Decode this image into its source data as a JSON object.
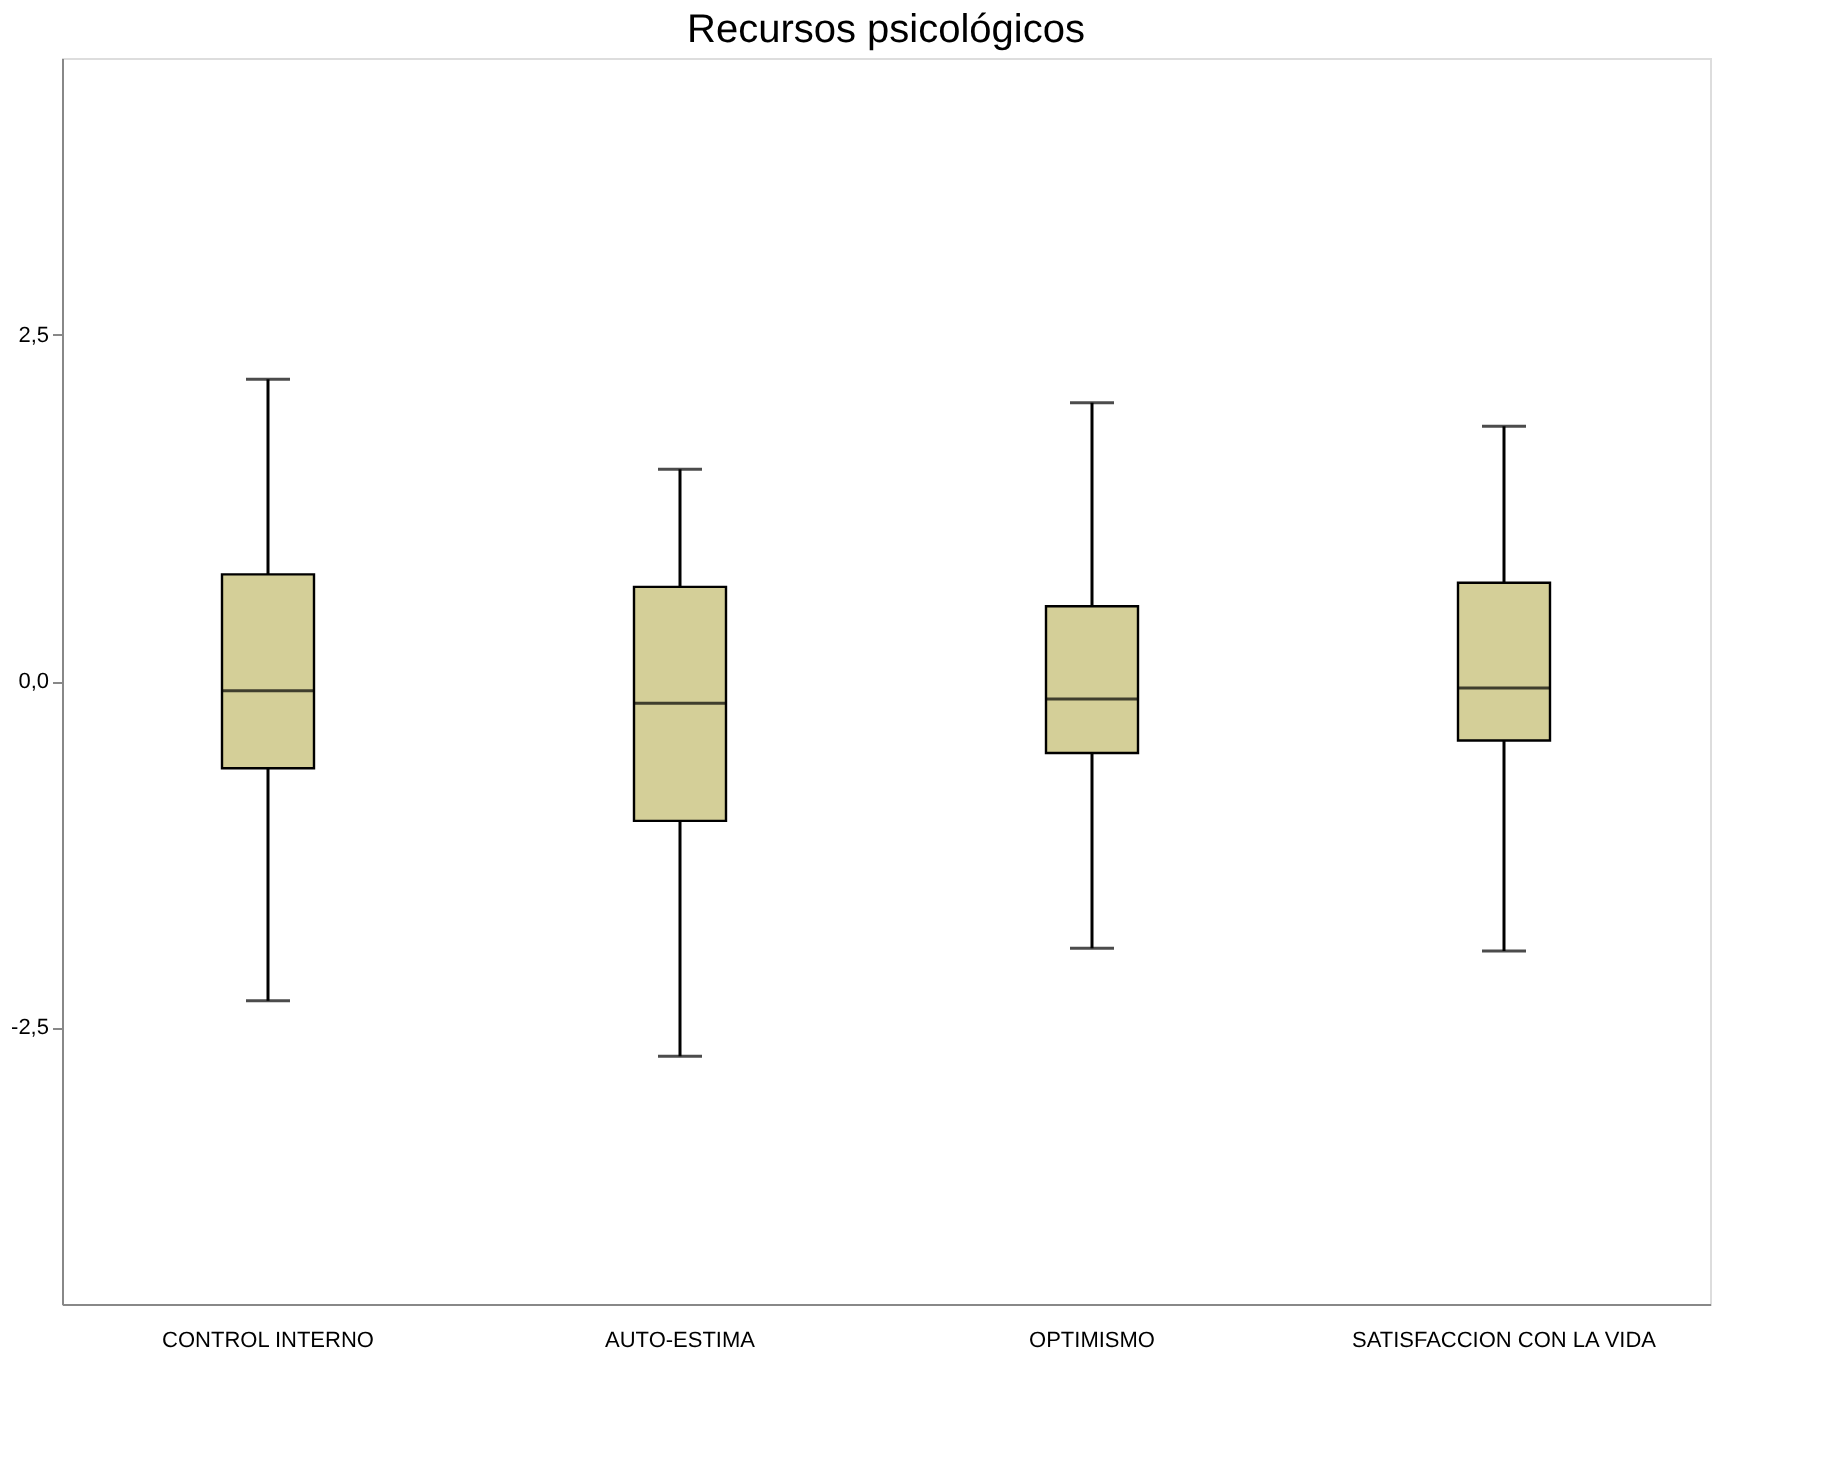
{
  "chart_data": {
    "type": "box",
    "title": "Recursos psicológicos",
    "categories": [
      "CONTROL INTERNO",
      "AUTO-ESTIMA",
      "OPTIMISMO",
      "SATISFACCION CON LA VIDA"
    ],
    "boxes": [
      {
        "low": -2.31,
        "q1": -0.63,
        "median": -0.07,
        "q3": 0.77,
        "high": 2.18
      },
      {
        "low": -2.71,
        "q1": -1.01,
        "median": -0.16,
        "q3": 0.68,
        "high": 1.53
      },
      {
        "low": -1.93,
        "q1": -0.52,
        "median": -0.13,
        "q3": 0.54,
        "high": 2.01
      },
      {
        "low": -1.95,
        "q1": -0.43,
        "median": -0.05,
        "q3": 0.71,
        "high": 1.84
      }
    ],
    "color": "#d4cf98",
    "ylim": [
      -4.5,
      4.5
    ],
    "yticks": [
      {
        "value": -2.5,
        "label": "-2,5"
      },
      {
        "value": 0,
        "label": "0,0"
      },
      {
        "value": 2.5,
        "label": "2,5"
      }
    ],
    "grid": false
  }
}
